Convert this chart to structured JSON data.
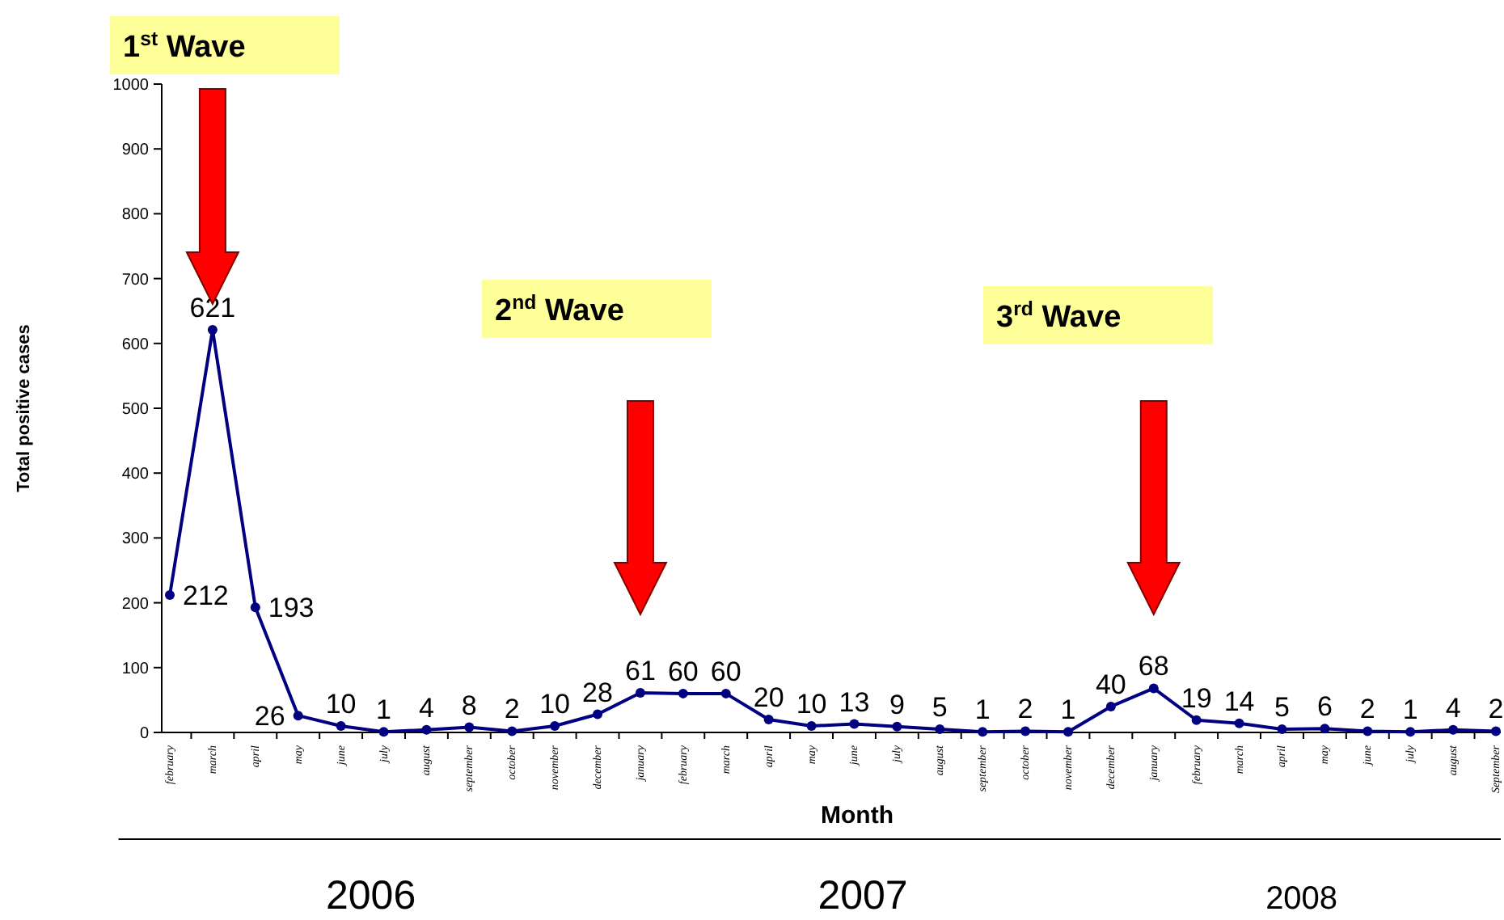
{
  "chart_data": {
    "type": "line",
    "xlabel": "Month",
    "ylabel": "Total positive cases",
    "categories": [
      "february",
      "march",
      "april",
      "may",
      "june",
      "july",
      "august",
      "september",
      "october",
      "november",
      "december",
      "january",
      "february",
      "march",
      "april",
      "may",
      "june",
      "july",
      "august",
      "september",
      "october",
      "november",
      "december",
      "january",
      "february",
      "march",
      "april",
      "may",
      "june",
      "july",
      "august",
      "September"
    ],
    "series": [
      {
        "color": "#000080",
        "values": [
          212,
          621,
          193,
          26,
          10,
          1,
          4,
          8,
          2,
          10,
          28,
          61,
          60,
          60,
          20,
          10,
          13,
          9,
          5,
          1,
          2,
          1,
          40,
          68,
          19,
          14,
          5,
          6,
          2,
          1,
          4,
          2
        ]
      }
    ],
    "ylim": [
      0,
      1000
    ],
    "yticks": [
      0,
      100,
      200,
      300,
      400,
      500,
      600,
      700,
      800,
      900,
      1000
    ],
    "data_labels": true,
    "marker": "circle",
    "grid": false,
    "annotations": [
      "1$^{st}$ Wave",
      "2$^{nd}$ Wave",
      "3$^{rd}$ Wave",
      "2006",
      "2007",
      "2008"
    ]
  }
}
